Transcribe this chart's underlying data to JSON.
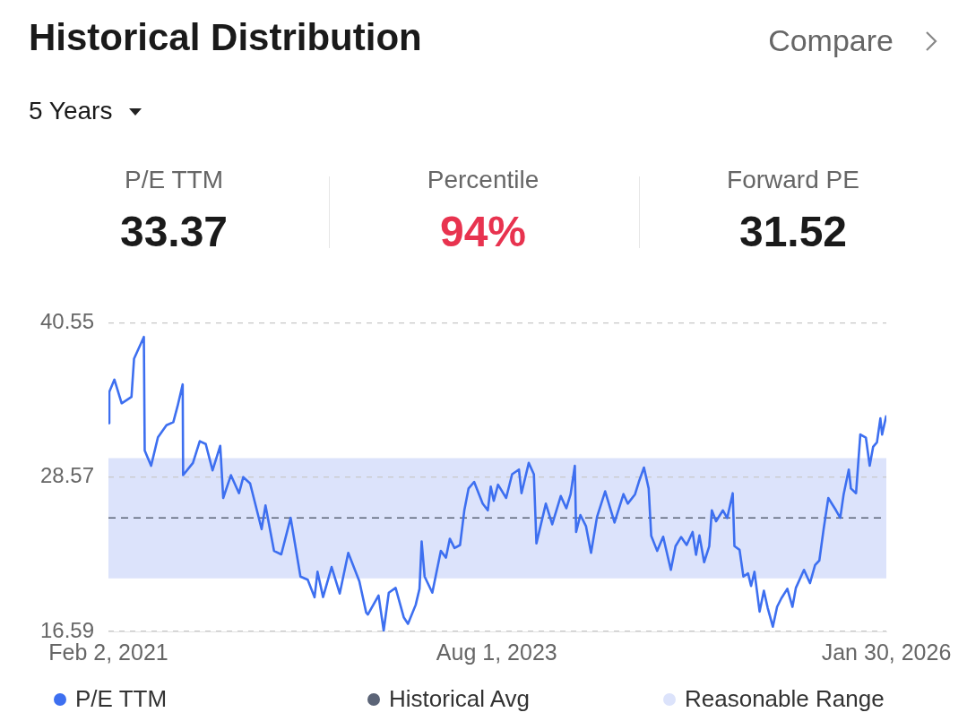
{
  "chart_data": {
    "type": "line",
    "title": "Historical Distribution",
    "annotations": [
      "Compare",
      "5 Years",
      "P/E TTM",
      "33.37",
      "Percentile",
      "94%",
      "Forward PE",
      "31.52"
    ],
    "xlim": [
      "2021-02-02",
      "2026-01-30"
    ],
    "xticks": [
      {
        "value": "2021-02-02",
        "label": "Feb 2, 2021"
      },
      {
        "value": "2023-08-01",
        "label": "Aug 1, 2023"
      },
      {
        "value": "2026-01-30",
        "label": "Jan 30, 2026"
      }
    ],
    "ylim": [
      16.59,
      40.55
    ],
    "yticks": [
      16.59,
      28.57,
      40.55
    ],
    "grid": "y",
    "legend": "bottom",
    "ref_lines": [
      {
        "axis": "y",
        "value": 25.41,
        "label": "Historical Avg",
        "color": "#5b6477",
        "line_style": "dashed"
      }
    ],
    "bands": [
      {
        "axis": "y",
        "from": 20.71,
        "to": 30.04,
        "label": "Reasonable Range",
        "color": "#dce3fb"
      }
    ],
    "series": [
      {
        "name": "P/E TTM",
        "color": "#3d6ff0",
        "x": [
          "2021-02-02",
          "2021-02-04",
          "2021-02-16",
          "2021-03-05",
          "2021-03-28",
          "2021-04-03",
          "2021-04-26",
          "2021-04-28",
          "2021-05-13",
          "2021-05-29",
          "2021-06-18",
          "2021-07-04",
          "2021-07-14",
          "2021-07-26",
          "2021-07-27",
          "2021-08-19",
          "2021-09-04",
          "2021-09-18",
          "2021-10-04",
          "2021-10-22",
          "2021-10-29",
          "2021-11-16",
          "2021-12-05",
          "2021-12-15",
          "2021-12-31",
          "2022-01-27",
          "2022-02-05",
          "2022-02-25",
          "2022-03-14",
          "2022-04-05",
          "2022-04-28",
          "2022-05-15",
          "2022-05-31",
          "2022-06-07",
          "2022-06-20",
          "2022-07-10",
          "2022-07-29",
          "2022-08-18",
          "2022-09-13",
          "2022-09-29",
          "2022-10-03",
          "2022-10-28",
          "2022-11-09",
          "2022-11-21",
          "2022-12-07",
          "2022-12-26",
          "2023-01-05",
          "2023-01-23",
          "2023-02-01",
          "2023-02-06",
          "2023-02-13",
          "2023-03-03",
          "2023-03-23",
          "2023-04-04",
          "2023-04-13",
          "2023-04-24",
          "2023-05-07",
          "2023-05-17",
          "2023-05-27",
          "2023-06-09",
          "2023-06-29",
          "2023-07-11",
          "2023-07-18",
          "2023-07-25",
          "2023-08-04",
          "2023-08-23",
          "2023-09-06",
          "2023-09-22",
          "2023-09-28",
          "2023-10-15",
          "2023-10-27",
          "2023-11-02",
          "2023-11-24",
          "2023-12-09",
          "2023-12-29",
          "2024-01-11",
          "2024-01-21",
          "2024-01-31",
          "2024-02-03",
          "2024-02-13",
          "2024-02-26",
          "2024-03-09",
          "2024-03-23",
          "2024-04-11",
          "2024-05-03",
          "2024-05-24",
          "2024-06-03",
          "2024-06-20",
          "2024-06-29",
          "2024-07-11",
          "2024-07-22",
          "2024-07-28",
          "2024-08-11",
          "2024-08-25",
          "2024-09-12",
          "2024-09-23",
          "2024-10-06",
          "2024-10-19",
          "2024-11-02",
          "2024-11-10",
          "2024-11-18",
          "2024-11-29",
          "2024-12-11",
          "2024-12-17",
          "2024-12-27",
          "2025-01-12",
          "2025-01-22",
          "2025-02-04",
          "2025-02-08",
          "2025-02-20",
          "2025-03-01",
          "2025-03-12",
          "2025-03-19",
          "2025-03-27",
          "2025-04-08",
          "2025-04-18",
          "2025-04-27",
          "2025-05-09",
          "2025-05-19",
          "2025-05-29",
          "2025-06-12",
          "2025-06-24",
          "2025-07-02",
          "2025-07-21",
          "2025-08-04",
          "2025-08-16",
          "2025-08-26",
          "2025-09-05",
          "2025-09-16",
          "2025-10-04",
          "2025-10-14",
          "2025-10-22",
          "2025-11-03",
          "2025-11-08",
          "2025-11-20",
          "2025-11-30",
          "2025-12-13",
          "2025-12-22",
          "2025-12-30",
          "2026-01-08",
          "2026-01-16",
          "2026-01-20",
          "2026-01-30"
        ],
        "values": [
          32.76,
          35.19,
          36.14,
          34.3,
          34.8,
          37.76,
          39.45,
          30.63,
          29.45,
          31.66,
          32.6,
          32.83,
          34.08,
          35.77,
          28.72,
          29.67,
          31.36,
          31.14,
          29.09,
          31.0,
          26.95,
          28.72,
          27.32,
          28.57,
          28.08,
          24.53,
          26.37,
          22.84,
          22.57,
          25.41,
          20.85,
          20.61,
          19.24,
          21.22,
          19.26,
          21.59,
          19.53,
          22.69,
          20.49,
          18.06,
          17.91,
          19.38,
          16.66,
          19.6,
          19.97,
          17.69,
          17.18,
          18.65,
          19.9,
          23.57,
          20.85,
          19.6,
          22.84,
          22.32,
          23.79,
          23.06,
          23.3,
          25.99,
          27.69,
          28.2,
          26.51,
          25.99,
          27.84,
          26.73,
          27.98,
          26.95,
          28.79,
          29.16,
          27.32,
          29.67,
          28.79,
          23.43,
          26.51,
          24.9,
          27.1,
          26.15,
          27.23,
          29.45,
          24.31,
          25.63,
          24.77,
          22.69,
          25.48,
          27.47,
          25.04,
          27.25,
          26.51,
          27.23,
          28.2,
          29.31,
          27.69,
          24.01,
          22.84,
          23.94,
          21.37,
          23.21,
          23.92,
          23.3,
          24.31,
          22.54,
          24.04,
          21.96,
          23.21,
          25.99,
          25.14,
          25.99,
          25.39,
          27.32,
          23.21,
          22.93,
          20.85,
          21.1,
          20.12,
          21.22,
          18.13,
          19.75,
          18.41,
          16.96,
          18.5,
          19.16,
          19.9,
          18.5,
          19.97,
          21.37,
          20.34,
          21.74,
          22.1,
          24.53,
          26.95,
          25.99,
          25.41,
          27.25,
          29.16,
          27.69,
          27.32,
          31.88,
          31.64,
          29.45,
          30.92,
          31.27,
          33.13,
          31.88,
          33.37
        ]
      }
    ]
  }
}
